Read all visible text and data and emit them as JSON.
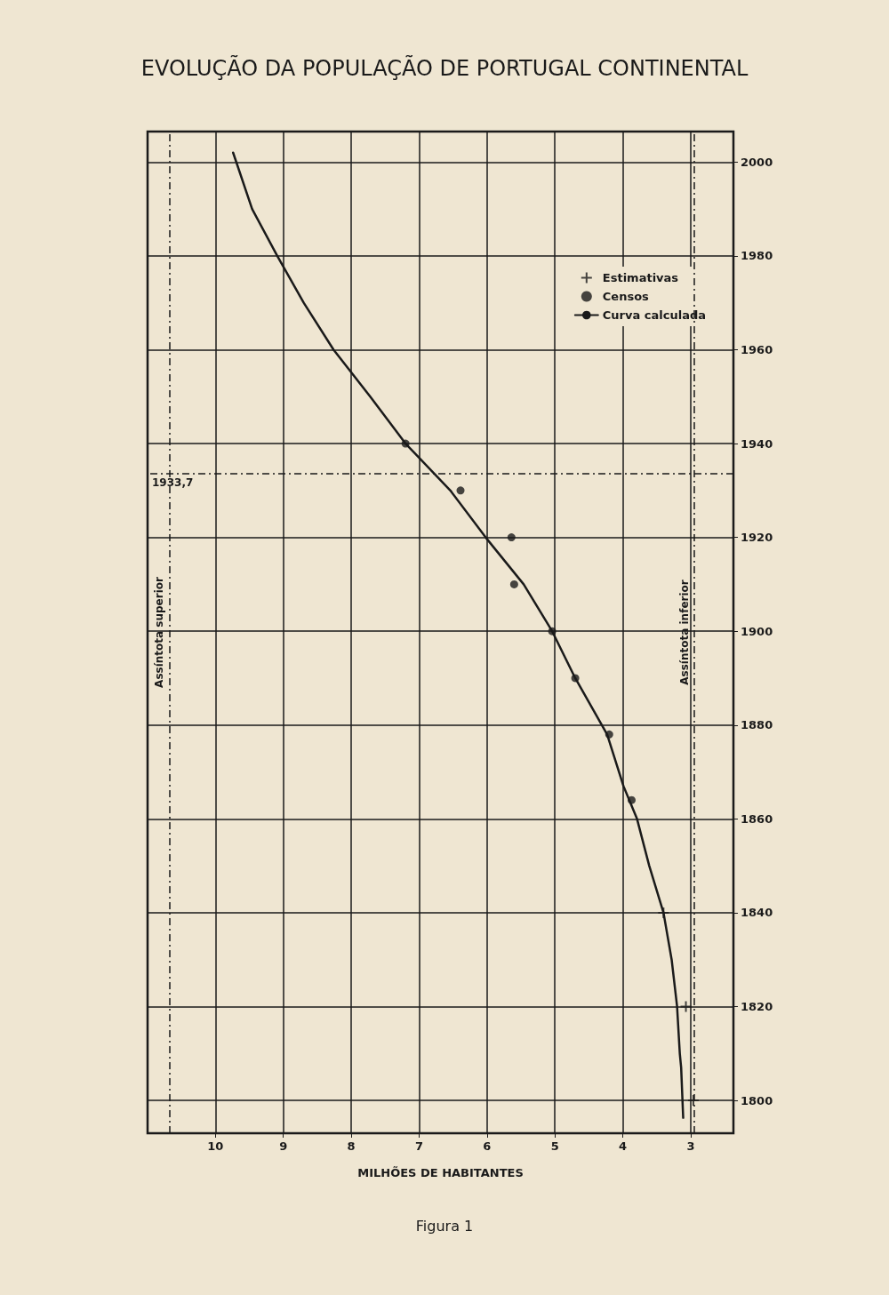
{
  "chart_data": {
    "type": "scatter",
    "title": "EVOLUÇÃO DA POPULAÇÃO DE PORTUGAL CONTINENTAL",
    "xlabel": "MILHÕES DE HABITANTES",
    "xlim": [
      11,
      2.37
    ],
    "xticks": [
      10,
      9,
      8,
      7,
      6,
      5,
      4,
      3
    ],
    "ylim": [
      1793,
      2006.5
    ],
    "yticks": [
      1800,
      1820,
      1840,
      1860,
      1880,
      1900,
      1920,
      1940,
      1960,
      1980,
      2000
    ],
    "grid": true,
    "legend": "right",
    "series": [
      {
        "name": "Estimativas",
        "marker": "cross",
        "color": "#1a1a1a",
        "x": [
          2.96,
          3.07,
          3.4
        ],
        "values": [
          1800,
          1820,
          1840
        ]
      },
      {
        "name": "Censos",
        "marker": "circle",
        "color": "#1a1a1a",
        "x": [
          3.87,
          4.2,
          4.7,
          5.04,
          5.6,
          5.64,
          6.39,
          7.2
        ],
        "values": [
          1864,
          1878,
          1890,
          1900,
          1910,
          1920,
          1930,
          1940
        ]
      },
      {
        "name": "Curva calculada",
        "type": "line",
        "marker": "none",
        "line_style": "solid",
        "color": "#1a1a1a",
        "x": [
          3.11,
          3.14,
          3.16,
          3.2,
          3.28,
          3.4,
          3.61,
          3.79,
          3.99,
          4.23,
          4.7,
          5.04,
          5.46,
          6.02,
          6.54,
          7.2,
          7.72,
          8.26,
          8.7,
          9.09,
          9.46,
          9.74
        ],
        "values": [
          1796.3,
          1807,
          1810,
          1820,
          1830,
          1840,
          1850,
          1860,
          1867,
          1878,
          1890,
          1900,
          1910,
          1920,
          1930,
          1940,
          1950,
          1960,
          1970,
          1980,
          1990,
          2002
        ]
      }
    ],
    "ref_lines": [
      {
        "axis": "x",
        "value": 10.68,
        "label": "Assíntota superior",
        "line_style": "dashed",
        "color": "#1a1a1a"
      },
      {
        "axis": "x",
        "value": 2.95,
        "label": "Assíntota inferior",
        "line_style": "dashed",
        "color": "#1a1a1a"
      },
      {
        "axis": "y",
        "value": 1933.7,
        "label": "1933,7",
        "line_style": "dashed",
        "color": "#1a1a1a"
      }
    ],
    "annotations": [
      "Figura 1"
    ]
  }
}
